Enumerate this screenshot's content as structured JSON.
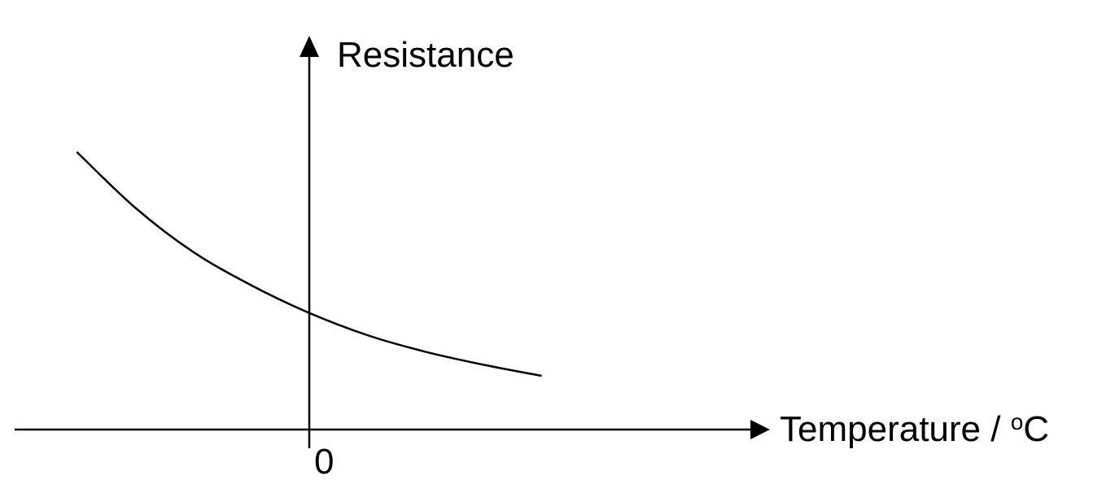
{
  "chart_data": {
    "type": "line",
    "title": "",
    "xlabel": "Temperature / ",
    "xlabel_sup": "o",
    "xlabel_unit": "C",
    "ylabel": "Resistance",
    "x_tick_labels": [
      "0"
    ],
    "grid": false,
    "legend": "none",
    "line_color": "#000000",
    "series": [
      {
        "x": [
          -8,
          -6,
          -4,
          -2,
          0,
          2,
          4,
          6,
          8
        ],
        "y": [
          7.5,
          6.0,
          4.8,
          3.9,
          3.15,
          2.55,
          2.1,
          1.75,
          1.45
        ]
      }
    ],
    "xlim": [
      -10,
      15
    ],
    "ylim": [
      0,
      10
    ]
  }
}
